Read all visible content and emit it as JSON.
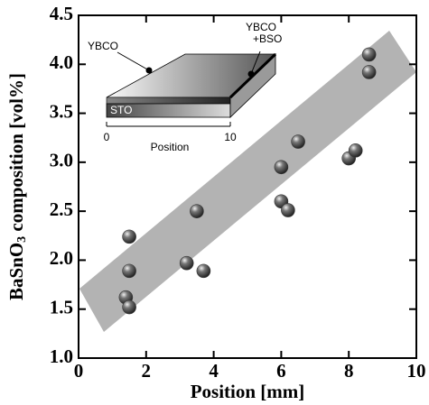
{
  "chart_data": {
    "type": "scatter",
    "xlabel": "Position [mm]",
    "ylabel": [
      "BaSnO",
      "3",
      " composition [vol%]"
    ],
    "xlim": [
      0,
      10
    ],
    "xticks": [
      0,
      2,
      4,
      6,
      8,
      10
    ],
    "ylim": [
      1,
      4.5
    ],
    "yticks": [
      {
        "value": 1,
        "label": "1.0"
      },
      1.5,
      {
        "value": 2,
        "label": "2.0"
      },
      2.5,
      {
        "value": 3,
        "label": "3.0"
      },
      3.5,
      {
        "value": 4,
        "label": "4.0"
      },
      4.5
    ],
    "color": "#3a3a3a",
    "x": [
      1.4,
      1.5,
      1.5,
      1.5,
      3.2,
      3.7,
      3.5,
      6.0,
      6.0,
      6.2,
      6.5,
      8.0,
      8.2,
      8.6,
      8.6
    ],
    "values": [
      1.62,
      1.52,
      1.89,
      2.24,
      1.97,
      1.89,
      2.5,
      2.95,
      2.6,
      2.51,
      3.21,
      3.04,
      3.12,
      4.1,
      3.92
    ],
    "inset": {
      "left_label": "YBCO",
      "right_label": [
        "YBCO",
        "+BSO"
      ],
      "substrate": "STO",
      "axis_start": "0",
      "axis_end": "10",
      "axis_label": "Position"
    }
  }
}
